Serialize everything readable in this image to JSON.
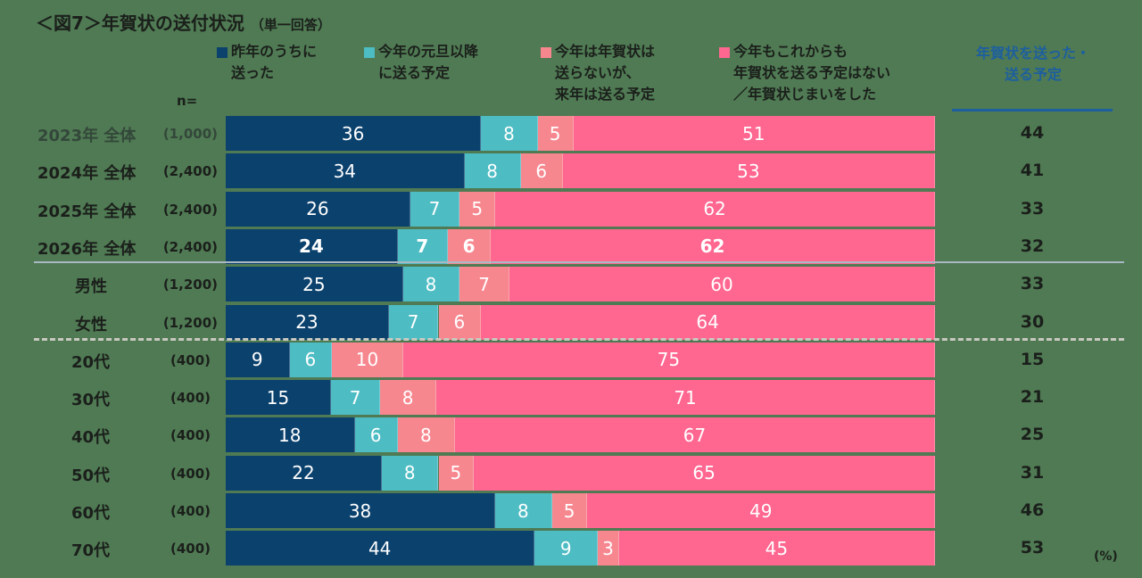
{
  "colors": {
    "sent_last_year": "#0b416d",
    "send_after_newyear": "#4dbcc3",
    "not_this_year_next_year": "#f7878f",
    "no_plan": "#ff6690",
    "right_header": "#1d5f9f"
  },
  "chart_data": {
    "type": "bar",
    "orientation": "horizontal-stacked-100",
    "title": "＜図7＞年賀状の送付状況",
    "subtitle": "（単一回答）",
    "n_label": "n=",
    "unit": "(%)",
    "legend": [
      {
        "name": "昨年のうちに\n送った"
      },
      {
        "name": "今年の元旦以降\nに送る予定"
      },
      {
        "name": "今年は年賀状は\n送らないが、\n来年は送る予定"
      },
      {
        "name": "今年もこれからも\n年賀状を送る予定はない\n／年賀状じまいをした"
      }
    ],
    "right_column_header": "年賀状を送った・\n送る予定",
    "rows": [
      {
        "label": "2023年 全体",
        "n": "(1,000)",
        "values": [
          36,
          8,
          5,
          51
        ],
        "total": "44",
        "kind": "year"
      },
      {
        "label": "2024年 全体",
        "n": "(2,400)",
        "values": [
          34,
          8,
          6,
          53
        ],
        "total": "41",
        "kind": "year"
      },
      {
        "label": "2025年 全体",
        "n": "(2,400)",
        "values": [
          26,
          7,
          5,
          62
        ],
        "total": "33",
        "kind": "year"
      },
      {
        "label": "2026年 全体",
        "n": "(2,400)",
        "values": [
          24,
          7,
          6,
          62
        ],
        "total": "32",
        "kind": "year",
        "bold": true
      },
      {
        "label": "男性",
        "n": "(1,200)",
        "values": [
          25,
          8,
          7,
          60
        ],
        "total": "33",
        "kind": "gender"
      },
      {
        "label": "女性",
        "n": "(1,200)",
        "values": [
          23,
          7,
          6,
          64
        ],
        "total": "30",
        "kind": "gender"
      },
      {
        "label": "20代",
        "n": "(400)",
        "values": [
          9,
          6,
          10,
          75
        ],
        "total": "15",
        "kind": "age"
      },
      {
        "label": "30代",
        "n": "(400)",
        "values": [
          15,
          7,
          8,
          71
        ],
        "total": "21",
        "kind": "age"
      },
      {
        "label": "40代",
        "n": "(400)",
        "values": [
          18,
          6,
          8,
          67
        ],
        "total": "25",
        "kind": "age"
      },
      {
        "label": "50代",
        "n": "(400)",
        "values": [
          22,
          8,
          5,
          65
        ],
        "total": "31",
        "kind": "age"
      },
      {
        "label": "60代",
        "n": "(400)",
        "values": [
          38,
          8,
          5,
          49
        ],
        "total": "46",
        "kind": "age"
      },
      {
        "label": "70代",
        "n": "(400)",
        "values": [
          44,
          9,
          3,
          45
        ],
        "total": "53",
        "kind": "age"
      }
    ]
  }
}
